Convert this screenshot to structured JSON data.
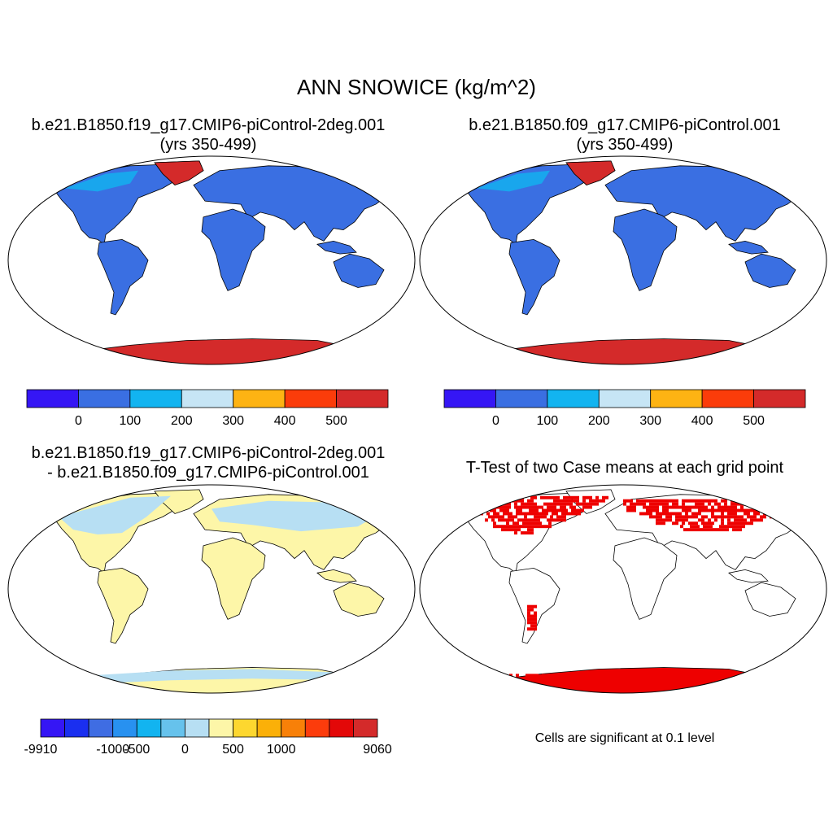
{
  "main_title": "ANN SNOWICE (kg/m^2)",
  "panels": {
    "p1": {
      "title_line1": "b.e21.B1850.f19_g17.CMIP6-piControl-2deg.001",
      "title_line2": "(yrs 350-499)"
    },
    "p2": {
      "title_line1": "b.e21.B1850.f09_g17.CMIP6-piControl.001",
      "title_line2": "(yrs 350-499)"
    },
    "p3": {
      "title_line1": "b.e21.B1850.f19_g17.CMIP6-piControl-2deg.001",
      "title_line2": "- b.e21.B1850.f09_g17.CMIP6-piControl.001"
    },
    "p4": {
      "title": "T-Test of two Case means at each grid point",
      "note": "Cells are significant at 0.1 level"
    }
  },
  "colors": {
    "land_low": "#3a6fe2",
    "land_diff": "#fdf6a8",
    "land_diff_neg": "#b7dff3",
    "ice": "#d42a2a",
    "significant": "#ee0000",
    "coast": "#000000"
  },
  "chart_data": [
    {
      "type": "heatmap",
      "name": "case1",
      "title": "b.e21.B1850.f19_g17.CMIP6-piControl-2deg.001 (yrs 350-499)",
      "colorbar": {
        "colors": [
          "#3516f5",
          "#3a6fe2",
          "#12b4f0",
          "#c6e5f5",
          "#fdb313",
          "#fb3c0a",
          "#d42a2a"
        ],
        "tick_labels": [
          "0",
          "100",
          "200",
          "300",
          "400",
          "500"
        ],
        "tick_values": [
          0,
          100,
          200,
          300,
          400,
          500
        ]
      }
    },
    {
      "type": "heatmap",
      "name": "case2",
      "title": "b.e21.B1850.f09_g17.CMIP6-piControl.001 (yrs 350-499)",
      "colorbar": {
        "colors": [
          "#3516f5",
          "#3a6fe2",
          "#12b4f0",
          "#c6e5f5",
          "#fdb313",
          "#fb3c0a",
          "#d42a2a"
        ],
        "tick_labels": [
          "0",
          "100",
          "200",
          "300",
          "400",
          "500"
        ],
        "tick_values": [
          0,
          100,
          200,
          300,
          400,
          500
        ]
      }
    },
    {
      "type": "heatmap",
      "name": "difference",
      "title": "b.e21.B1850.f19_g17.CMIP6-piControl-2deg.001 - b.e21.B1850.f09_g17.CMIP6-piControl.001",
      "colorbar": {
        "colors": [
          "#3516f5",
          "#1a2ff0",
          "#3f6de3",
          "#2891f0",
          "#12b4f0",
          "#66c2ec",
          "#b7dff3",
          "#fdf6a8",
          "#fdd72f",
          "#fbb008",
          "#f88008",
          "#fc3c0c",
          "#e30808",
          "#d42a2a"
        ],
        "tick_labels": [
          "-9910",
          "-1000",
          "-500",
          "0",
          "500",
          "1000",
          "9060"
        ],
        "tick_values": [
          -9910,
          -1000,
          -500,
          0,
          500,
          1000,
          9060
        ]
      }
    },
    {
      "type": "heatmap",
      "name": "ttest",
      "title": "T-Test of two Case means at each grid point",
      "significance_level": 0.1
    }
  ]
}
